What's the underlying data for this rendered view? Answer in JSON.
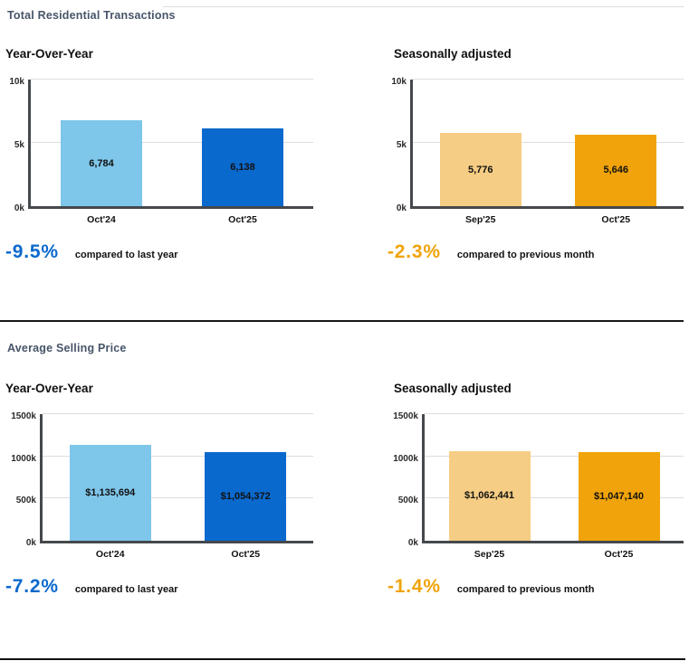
{
  "page": {
    "section1_title": "Total Residential Transactions",
    "section2_title": "Average Selling Price"
  },
  "chart_data": [
    {
      "type": "bar",
      "title": "Year-Over-Year",
      "categories": [
        "Oct'24",
        "Oct'25"
      ],
      "values": [
        6784,
        6138
      ],
      "value_labels": [
        "6,784",
        "6,138"
      ],
      "bar_colors": [
        "#7EC6EA",
        "#0A69CD"
      ],
      "ylim": [
        0,
        10000
      ],
      "yticks": [
        {
          "value": 0,
          "label": "0k"
        },
        {
          "value": 5000,
          "label": "5k"
        },
        {
          "value": 10000,
          "label": "10k"
        }
      ],
      "grid": true,
      "legend": "none",
      "delta": {
        "pct": "-9.5%",
        "caption": "compared to last year",
        "color": "#0A69CD"
      }
    },
    {
      "type": "bar",
      "title": "Seasonally adjusted",
      "categories": [
        "Sep'25",
        "Oct'25"
      ],
      "values": [
        5776,
        5646
      ],
      "value_labels": [
        "5,776",
        "5,646"
      ],
      "bar_colors": [
        "#F6CD84",
        "#F0A30A"
      ],
      "ylim": [
        0,
        10000
      ],
      "yticks": [
        {
          "value": 0,
          "label": "0k"
        },
        {
          "value": 5000,
          "label": "5k"
        },
        {
          "value": 10000,
          "label": "10k"
        }
      ],
      "grid": true,
      "legend": "none",
      "delta": {
        "pct": "-2.3%",
        "caption": "compared to previous month",
        "color": "#F0A30A"
      }
    },
    {
      "type": "bar",
      "title": "Year-Over-Year",
      "categories": [
        "Oct'24",
        "Oct'25"
      ],
      "values": [
        1135694,
        1054372
      ],
      "value_labels": [
        "$1,135,694",
        "$1,054,372"
      ],
      "bar_colors": [
        "#7EC6EA",
        "#0A69CD"
      ],
      "ylim": [
        0,
        1500000
      ],
      "yticks": [
        {
          "value": 0,
          "label": "0k"
        },
        {
          "value": 500000,
          "label": "500k"
        },
        {
          "value": 1000000,
          "label": "1000k"
        },
        {
          "value": 1500000,
          "label": "1500k"
        }
      ],
      "grid": true,
      "legend": "none",
      "delta": {
        "pct": "-7.2%",
        "caption": "compared to last year",
        "color": "#0A69CD"
      }
    },
    {
      "type": "bar",
      "title": "Seasonally adjusted",
      "categories": [
        "Sep'25",
        "Oct'25"
      ],
      "values": [
        1062441,
        1047140
      ],
      "value_labels": [
        "$1,062,441",
        "$1,047,140"
      ],
      "bar_colors": [
        "#F6CD84",
        "#F0A30A"
      ],
      "ylim": [
        0,
        1500000
      ],
      "yticks": [
        {
          "value": 0,
          "label": "0k"
        },
        {
          "value": 500000,
          "label": "500k"
        },
        {
          "value": 1000000,
          "label": "1000k"
        },
        {
          "value": 1500000,
          "label": "1500k"
        }
      ],
      "grid": true,
      "legend": "none",
      "delta": {
        "pct": "-1.4%",
        "caption": "compared to previous month",
        "color": "#F0A30A"
      }
    }
  ]
}
